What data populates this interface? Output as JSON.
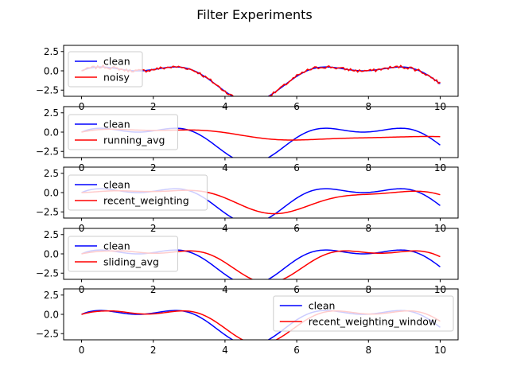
{
  "figure": {
    "title": "Filter Experiments"
  },
  "colors": {
    "clean": "#0000ff",
    "filtered": "#ff0000"
  },
  "chart_data": [
    {
      "type": "line",
      "legend_position": "upper-left",
      "xlim": [
        -0.5,
        10.5
      ],
      "ylim": [
        -3.3,
        3.3
      ],
      "xticks": [
        0,
        2,
        4,
        6,
        8,
        10
      ],
      "xtick_labels": [
        "0",
        "2",
        "4",
        "6",
        "8",
        "10"
      ],
      "yticks": [
        -2.5,
        0.0,
        2.5
      ],
      "ytick_labels": [
        "−2.5",
        "0.0",
        "2.5"
      ],
      "series": [
        {
          "name": "clean",
          "color": "#0000ff",
          "function": "2*sin(x)+cos(2x)-1"
        },
        {
          "name": "noisy",
          "color": "#ff0000",
          "function": "2*sin(x)+cos(2x)-1 + noise"
        }
      ]
    },
    {
      "type": "line",
      "legend_position": "left",
      "xlim": [
        -0.5,
        10.5
      ],
      "ylim": [
        -3.3,
        3.3
      ],
      "xticks": [
        0,
        2,
        4,
        6,
        8,
        10
      ],
      "xtick_labels": [
        "0",
        "2",
        "4",
        "6",
        "8",
        "10"
      ],
      "yticks": [
        -2.5,
        0.0,
        2.5
      ],
      "ytick_labels": [
        "−2.5",
        "0.0",
        "2.5"
      ],
      "series": [
        {
          "name": "clean",
          "color": "#0000ff",
          "function": "2*sin(x)+cos(2x)-1"
        },
        {
          "name": "running_avg",
          "color": "#ff0000",
          "function": "cumulative mean of clean"
        }
      ]
    },
    {
      "type": "line",
      "legend_position": "left",
      "xlim": [
        -0.5,
        10.5
      ],
      "ylim": [
        -3.3,
        3.3
      ],
      "xticks": [
        0,
        2,
        4,
        6,
        8,
        10
      ],
      "xtick_labels": [
        "0",
        "2",
        "4",
        "6",
        "8",
        "10"
      ],
      "yticks": [
        -2.5,
        0.0,
        2.5
      ],
      "ytick_labels": [
        "−2.5",
        "0.0",
        "2.5"
      ],
      "series": [
        {
          "name": "clean",
          "color": "#0000ff",
          "function": "2*sin(x)+cos(2x)-1"
        },
        {
          "name": "recent_weighting",
          "color": "#ff0000",
          "function": "exponential weighting of clean"
        }
      ]
    },
    {
      "type": "line",
      "legend_position": "left",
      "xlim": [
        -0.5,
        10.5
      ],
      "ylim": [
        -3.3,
        3.3
      ],
      "xticks": [
        0,
        2,
        4,
        6,
        8,
        10
      ],
      "xtick_labels": [
        "0",
        "2",
        "4",
        "6",
        "8",
        "10"
      ],
      "yticks": [
        -2.5,
        0.0,
        2.5
      ],
      "ytick_labels": [
        "−2.5",
        "0.0",
        "2.5"
      ],
      "series": [
        {
          "name": "clean",
          "color": "#0000ff",
          "function": "2*sin(x)+cos(2x)-1"
        },
        {
          "name": "sliding_avg",
          "color": "#ff0000",
          "function": "sliding window mean of clean"
        }
      ]
    },
    {
      "type": "line",
      "legend_position": "right",
      "xlim": [
        -0.5,
        10.5
      ],
      "ylim": [
        -3.3,
        3.3
      ],
      "xticks": [
        0,
        2,
        4,
        6,
        8,
        10
      ],
      "xtick_labels": [
        "0",
        "2",
        "4",
        "6",
        "8",
        "10"
      ],
      "yticks": [
        -2.5,
        0.0,
        2.5
      ],
      "ytick_labels": [
        "−2.5",
        "0.0",
        "2.5"
      ],
      "series": [
        {
          "name": "clean",
          "color": "#0000ff",
          "function": "2*sin(x)+cos(2x)-1"
        },
        {
          "name": "recent_weighting_window",
          "color": "#ff0000",
          "function": "weighted sliding window of clean"
        }
      ]
    }
  ]
}
